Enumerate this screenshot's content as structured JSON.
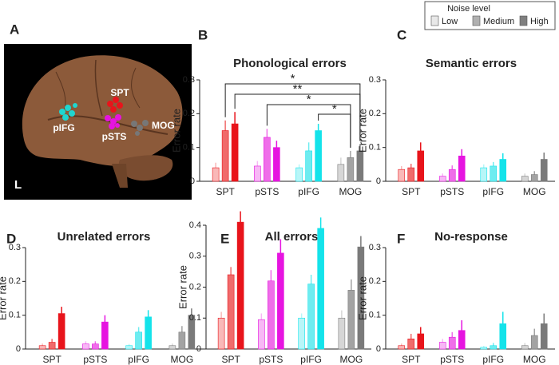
{
  "figure": {
    "panel_a": {
      "letter": "A",
      "labels": [
        "SPT",
        "pIFG",
        "pSTS",
        "MOG"
      ],
      "side": "L"
    },
    "legend": {
      "title": "Noise level",
      "entries": [
        {
          "name": "Low",
          "color": "#e8e8e8"
        },
        {
          "name": "Medium",
          "color": "#b0b0b0"
        },
        {
          "name": "High",
          "color": "#7f7f7f"
        }
      ]
    }
  },
  "chart_data": [
    {
      "type": "bar",
      "panel": "B",
      "title": "Phonological errors",
      "ylabel": "Error rate",
      "categories": [
        "SPT",
        "pSTS",
        "pIFG",
        "MOG"
      ],
      "category_colors": [
        [
          "#f9b8b8",
          "#f06b6b",
          "#e8141b"
        ],
        [
          "#f7b8f5",
          "#ef6ee9",
          "#e614e0"
        ],
        [
          "#b8f6f8",
          "#6eecf0",
          "#14e3ea"
        ],
        [
          "#d6d6d6",
          "#a3a3a3",
          "#7a7a7a"
        ]
      ],
      "series": [
        {
          "name": "Low",
          "values": [
            0.04,
            0.045,
            0.04,
            0.05
          ],
          "errors": [
            0.015,
            0.015,
            0.01,
            0.02
          ]
        },
        {
          "name": "Medium",
          "values": [
            0.15,
            0.13,
            0.09,
            0.07
          ],
          "errors": [
            0.03,
            0.025,
            0.025,
            0.02
          ]
        },
        {
          "name": "High",
          "values": [
            0.17,
            0.1,
            0.15,
            0.09
          ],
          "errors": [
            0.035,
            0.02,
            0.02,
            0.02
          ]
        }
      ],
      "annotations": [
        "*",
        "**",
        "*",
        "*"
      ],
      "ylim": [
        0,
        0.3
      ],
      "yticks": [
        0,
        0.1,
        0.2,
        0.3
      ]
    },
    {
      "type": "bar",
      "panel": "C",
      "title": "Semantic errors",
      "ylabel": "Error rate",
      "categories": [
        "SPT",
        "pSTS",
        "pIFG",
        "MOG"
      ],
      "category_colors": [
        [
          "#f9b8b8",
          "#f06b6b",
          "#e8141b"
        ],
        [
          "#f7b8f5",
          "#ef6ee9",
          "#e614e0"
        ],
        [
          "#b8f6f8",
          "#6eecf0",
          "#14e3ea"
        ],
        [
          "#d6d6d6",
          "#a3a3a3",
          "#7a7a7a"
        ]
      ],
      "series": [
        {
          "name": "Low",
          "values": [
            0.035,
            0.015,
            0.04,
            0.015
          ],
          "errors": [
            0.01,
            0.008,
            0.01,
            0.008
          ]
        },
        {
          "name": "Medium",
          "values": [
            0.04,
            0.035,
            0.045,
            0.02
          ],
          "errors": [
            0.012,
            0.012,
            0.012,
            0.01
          ]
        },
        {
          "name": "High",
          "values": [
            0.09,
            0.075,
            0.065,
            0.065
          ],
          "errors": [
            0.025,
            0.02,
            0.018,
            0.02
          ]
        }
      ],
      "ylim": [
        0,
        0.3
      ],
      "yticks": [
        0,
        0.1,
        0.2,
        0.3
      ]
    },
    {
      "type": "bar",
      "panel": "D",
      "title": "Unrelated errors",
      "ylabel": "Error rate",
      "categories": [
        "SPT",
        "pSTS",
        "pIFG",
        "MOG"
      ],
      "category_colors": [
        [
          "#f9b8b8",
          "#f06b6b",
          "#e8141b"
        ],
        [
          "#f7b8f5",
          "#ef6ee9",
          "#e614e0"
        ],
        [
          "#b8f6f8",
          "#6eecf0",
          "#14e3ea"
        ],
        [
          "#d6d6d6",
          "#a3a3a3",
          "#7a7a7a"
        ]
      ],
      "series": [
        {
          "name": "Low",
          "values": [
            0.01,
            0.015,
            0.01,
            0.01
          ],
          "errors": [
            0.006,
            0.008,
            0.005,
            0.006
          ]
        },
        {
          "name": "Medium",
          "values": [
            0.02,
            0.015,
            0.05,
            0.05
          ],
          "errors": [
            0.01,
            0.008,
            0.015,
            0.018
          ]
        },
        {
          "name": "High",
          "values": [
            0.105,
            0.08,
            0.095,
            0.1
          ],
          "errors": [
            0.02,
            0.02,
            0.02,
            0.02
          ]
        }
      ],
      "ylim": [
        0,
        0.3
      ],
      "yticks": [
        0,
        0.1,
        0.2,
        0.3
      ]
    },
    {
      "type": "bar",
      "panel": "E",
      "title": "All errors",
      "ylabel": "Error rate",
      "categories": [
        "SPT",
        "pSTS",
        "pIFG",
        "MOG"
      ],
      "category_colors": [
        [
          "#f9b8b8",
          "#f06b6b",
          "#e8141b"
        ],
        [
          "#f7b8f5",
          "#ef6ee9",
          "#e614e0"
        ],
        [
          "#b8f6f8",
          "#6eecf0",
          "#14e3ea"
        ],
        [
          "#d6d6d6",
          "#a3a3a3",
          "#7a7a7a"
        ]
      ],
      "series": [
        {
          "name": "Low",
          "values": [
            0.1,
            0.095,
            0.1,
            0.1
          ],
          "errors": [
            0.02,
            0.02,
            0.015,
            0.025
          ]
        },
        {
          "name": "Medium",
          "values": [
            0.24,
            0.22,
            0.21,
            0.19
          ],
          "errors": [
            0.025,
            0.035,
            0.03,
            0.035
          ]
        },
        {
          "name": "High",
          "values": [
            0.41,
            0.31,
            0.39,
            0.33
          ],
          "errors": [
            0.035,
            0.045,
            0.035,
            0.035
          ]
        }
      ],
      "ylim": [
        0,
        0.4
      ],
      "yticks": [
        0,
        0.1,
        0.2,
        0.3,
        0.4
      ]
    },
    {
      "type": "bar",
      "panel": "F",
      "title": "No-response",
      "ylabel": "Error rate",
      "categories": [
        "SPT",
        "pSTS",
        "pIFG",
        "MOG"
      ],
      "category_colors": [
        [
          "#f9b8b8",
          "#f06b6b",
          "#e8141b"
        ],
        [
          "#f7b8f5",
          "#ef6ee9",
          "#e614e0"
        ],
        [
          "#b8f6f8",
          "#6eecf0",
          "#14e3ea"
        ],
        [
          "#d6d6d6",
          "#a3a3a3",
          "#7a7a7a"
        ]
      ],
      "series": [
        {
          "name": "Low",
          "values": [
            0.01,
            0.02,
            0.005,
            0.01
          ],
          "errors": [
            0.006,
            0.01,
            0.004,
            0.008
          ]
        },
        {
          "name": "Medium",
          "values": [
            0.03,
            0.035,
            0.01,
            0.04
          ],
          "errors": [
            0.015,
            0.015,
            0.008,
            0.02
          ]
        },
        {
          "name": "High",
          "values": [
            0.045,
            0.055,
            0.075,
            0.075
          ],
          "errors": [
            0.02,
            0.03,
            0.035,
            0.03
          ]
        }
      ],
      "ylim": [
        0,
        0.3
      ],
      "yticks": [
        0,
        0.1,
        0.2,
        0.3
      ]
    }
  ]
}
